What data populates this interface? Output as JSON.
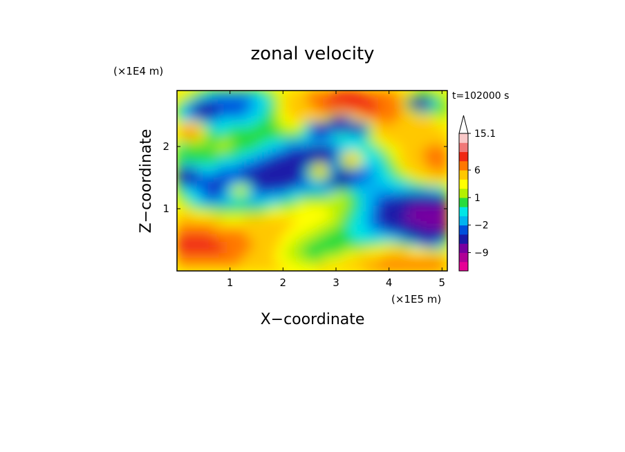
{
  "chart_data": {
    "type": "heatmap",
    "title": "zonal velocity",
    "time_label": "t=102000 s",
    "xlabel": "X−coordinate",
    "ylabel": "Z−coordinate",
    "x_unit": "(×1E5 m)",
    "y_unit": "(×1E4 m)",
    "xlim": [
      0,
      5.1
    ],
    "ylim": [
      0,
      2.9
    ],
    "x_ticks": [
      {
        "value": 1,
        "label": "1"
      },
      {
        "value": 2,
        "label": "2"
      },
      {
        "value": 3,
        "label": "3"
      },
      {
        "value": 4,
        "label": "4"
      },
      {
        "value": 5,
        "label": "5"
      }
    ],
    "y_ticks": [
      {
        "value": 1,
        "label": "1"
      },
      {
        "value": 2,
        "label": "2"
      }
    ],
    "colorbar": {
      "levels": [
        -15,
        -12,
        -9,
        -6,
        -3,
        -2,
        -1,
        0,
        1,
        2,
        3,
        6,
        9,
        12,
        15.1
      ],
      "colors": [
        "#e60096",
        "#b00096",
        "#7800a0",
        "#1a1aa8",
        "#0050dc",
        "#00b4f0",
        "#00e6e6",
        "#28dc3c",
        "#b4f000",
        "#ffff00",
        "#ffc800",
        "#ff7800",
        "#f02814",
        "#f07878",
        "#f8c8c8"
      ],
      "labels": [
        {
          "value": 15.1,
          "label": "15.1"
        },
        {
          "value": 6,
          "label": "6"
        },
        {
          "value": 1,
          "label": "1"
        },
        {
          "value": -2,
          "label": "−2"
        },
        {
          "value": -9,
          "label": "−9"
        }
      ]
    },
    "features": [
      {
        "x": 0.25,
        "z": 2.25,
        "v": 9
      },
      {
        "x": 0.5,
        "z": 2.6,
        "v": -6
      },
      {
        "x": 0.15,
        "z": 1.55,
        "v": -6
      },
      {
        "x": 2.7,
        "z": 2.3,
        "v": -6
      },
      {
        "x": 3.1,
        "z": 2.4,
        "v": -8
      },
      {
        "x": 3.45,
        "z": 2.3,
        "v": -6
      },
      {
        "x": 3.0,
        "z": 1.45,
        "v": -6
      },
      {
        "x": 4.6,
        "z": 2.7,
        "v": -8
      },
      {
        "x": 4.7,
        "z": 0.55,
        "v": -6
      },
      {
        "x": 3.3,
        "z": 1.8,
        "v": 6
      },
      {
        "x": 2.7,
        "z": 1.6,
        "v": 6
      },
      {
        "x": 1.2,
        "z": 1.3,
        "v": 3
      },
      {
        "x": 2.3,
        "z": 2.6,
        "v": 4
      },
      {
        "x": 4.6,
        "z": 2.35,
        "v": 6
      },
      {
        "x": 1.0,
        "z": 0.9,
        "v": 2
      },
      {
        "x": 3.1,
        "z": 1.2,
        "v": 2
      }
    ]
  }
}
